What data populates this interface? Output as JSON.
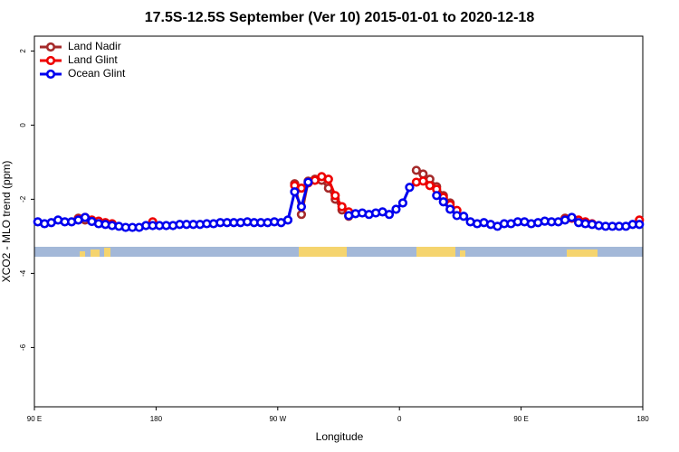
{
  "chart_data": {
    "type": "line",
    "title": "17.5S-12.5S September (Ver 10)   2015-01-01 to 2020-12-18",
    "x_label": "Longitude",
    "y_label": "XCO2 - MLO trend (ppm)",
    "xlim": [
      90,
      540
    ],
    "ylim": [
      -7.6,
      2.4
    ],
    "xticks": [
      {
        "value": 90,
        "label": "90 E"
      },
      180,
      {
        "value": 270,
        "label": "90 W"
      },
      {
        "value": 360,
        "label": "0"
      },
      {
        "value": 450,
        "label": "90 E"
      },
      {
        "value": 540,
        "label": "180"
      }
    ],
    "yticks": [
      2,
      0,
      -2,
      -4,
      -6
    ],
    "legend": "top-left",
    "x": [
      92.5,
      97.5,
      102.5,
      107.5,
      112.5,
      117.5,
      122.5,
      127.5,
      132.5,
      137.5,
      142.5,
      147.5,
      152.5,
      157.5,
      162.5,
      167.5,
      172.5,
      177.5,
      182.5,
      187.5,
      192.5,
      197.5,
      202.5,
      207.5,
      212.5,
      217.5,
      222.5,
      227.5,
      232.5,
      237.5,
      242.5,
      247.5,
      252.5,
      257.5,
      262.5,
      267.5,
      272.5,
      277.5,
      282.5,
      287.5,
      292.5,
      297.5,
      302.5,
      307.5,
      312.5,
      317.5,
      322.5,
      327.5,
      332.5,
      337.5,
      342.5,
      347.5,
      352.5,
      357.5,
      362.5,
      367.5,
      372.5,
      377.5,
      382.5,
      387.5,
      392.5,
      397.5,
      402.5,
      407.5,
      412.5,
      417.5,
      422.5,
      427.5,
      432.5,
      437.5,
      442.5,
      447.5,
      452.5,
      457.5,
      462.5,
      467.5,
      472.5,
      477.5,
      482.5,
      487.5,
      492.5,
      497.5,
      502.5,
      507.5,
      512.5,
      517.5,
      522.5,
      527.5,
      532.5,
      537.5
    ],
    "series": [
      {
        "name": "Land Nadir",
        "color": "#a52a2a",
        "values": [
          null,
          null,
          null,
          null,
          null,
          null,
          -2.51,
          -2.56,
          null,
          null,
          null,
          null,
          null,
          null,
          null,
          null,
          null,
          null,
          null,
          null,
          null,
          null,
          null,
          null,
          null,
          null,
          null,
          null,
          null,
          null,
          null,
          null,
          null,
          null,
          null,
          null,
          null,
          null,
          -1.58,
          -2.41,
          -1.51,
          -1.46,
          -1.49,
          -1.7,
          -2.0,
          -2.29,
          -2.46,
          null,
          null,
          null,
          null,
          null,
          null,
          null,
          null,
          null,
          -1.22,
          -1.32,
          -1.46,
          -1.66,
          -1.9,
          -2.1,
          null,
          null,
          null,
          null,
          null,
          null,
          null,
          null,
          null,
          null,
          null,
          null,
          null,
          null,
          null,
          null,
          -2.51,
          -2.51,
          null,
          null,
          null,
          null,
          null,
          null,
          null,
          null,
          null,
          null
        ]
      },
      {
        "name": "Land Glint",
        "color": "#ee0000",
        "values": [
          null,
          null,
          null,
          null,
          null,
          null,
          -2.54,
          -2.49,
          -2.56,
          -2.59,
          -2.63,
          -2.66,
          null,
          null,
          null,
          null,
          null,
          -2.61,
          null,
          null,
          null,
          null,
          null,
          null,
          null,
          null,
          null,
          null,
          null,
          null,
          null,
          null,
          null,
          null,
          null,
          null,
          null,
          null,
          -1.63,
          -1.7,
          -1.56,
          -1.49,
          -1.39,
          -1.46,
          -1.9,
          -2.2,
          -2.34,
          null,
          null,
          null,
          null,
          null,
          null,
          null,
          null,
          null,
          -1.54,
          -1.51,
          -1.63,
          -1.73,
          -1.95,
          -2.15,
          -2.3,
          null,
          null,
          null,
          null,
          null,
          null,
          null,
          null,
          null,
          null,
          null,
          null,
          null,
          null,
          null,
          -2.54,
          -2.51,
          -2.56,
          -2.61,
          -2.66,
          null,
          null,
          null,
          null,
          null,
          null,
          -2.56
        ]
      },
      {
        "name": "Ocean Glint",
        "color": "#0000ee",
        "values": [
          -2.61,
          -2.66,
          -2.63,
          -2.56,
          -2.61,
          -2.61,
          -2.56,
          -2.49,
          -2.6,
          -2.66,
          -2.68,
          -2.71,
          -2.73,
          -2.76,
          -2.76,
          -2.76,
          -2.71,
          -2.71,
          -2.71,
          -2.71,
          -2.71,
          -2.68,
          -2.68,
          -2.68,
          -2.68,
          -2.66,
          -2.66,
          -2.63,
          -2.63,
          -2.63,
          -2.63,
          -2.61,
          -2.63,
          -2.63,
          -2.63,
          -2.61,
          -2.63,
          -2.56,
          -1.8,
          -2.2,
          -1.54,
          null,
          null,
          null,
          null,
          null,
          -2.44,
          -2.39,
          -2.37,
          -2.41,
          -2.37,
          -2.34,
          -2.41,
          -2.27,
          -2.1,
          -1.68,
          null,
          null,
          null,
          -1.9,
          -2.07,
          -2.27,
          -2.44,
          -2.46,
          -2.61,
          -2.66,
          -2.63,
          -2.68,
          -2.73,
          -2.66,
          -2.66,
          -2.61,
          -2.61,
          -2.66,
          -2.63,
          -2.59,
          -2.61,
          -2.61,
          -2.56,
          -2.49,
          -2.63,
          -2.66,
          -2.68,
          -2.71,
          -2.73,
          -2.73,
          -2.73,
          -2.73,
          -2.68,
          -2.68
        ]
      }
    ]
  }
}
